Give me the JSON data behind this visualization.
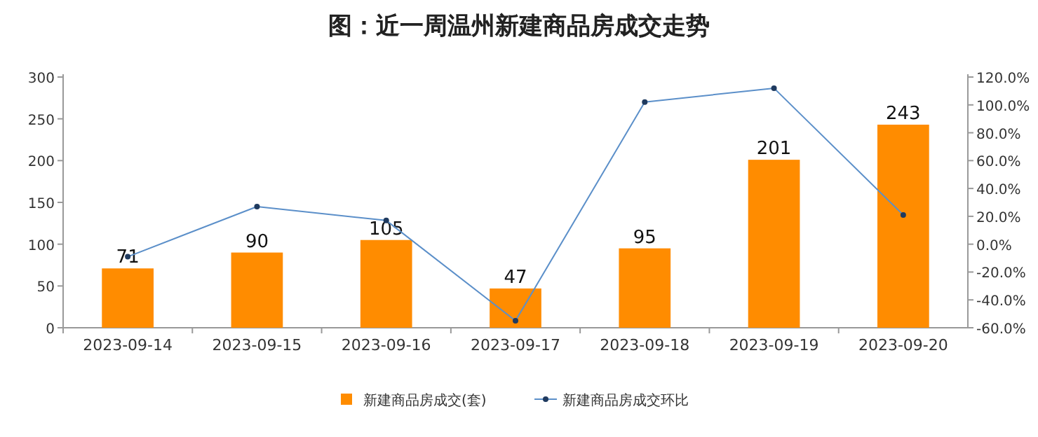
{
  "chart_data": {
    "type": "bar",
    "title": "图：近一周温州新建商品房成交走势",
    "categories": [
      "2023-09-14",
      "2023-09-15",
      "2023-09-16",
      "2023-09-17",
      "2023-09-18",
      "2023-09-19",
      "2023-09-20"
    ],
    "series": [
      {
        "name": "新建商品房成交(套)",
        "color": "#ff8c00",
        "values": [
          71,
          90,
          105,
          47,
          95,
          201,
          243
        ],
        "value_labels": [
          "71",
          "90",
          "105",
          "47",
          "95",
          "201",
          "243"
        ]
      },
      {
        "name": "新建商品房成交环比",
        "type": "line",
        "axis": "y2",
        "color": "#5b8fc9",
        "marker": "circle",
        "values": [
          -9,
          27,
          17,
          -55,
          102,
          112,
          21
        ]
      }
    ],
    "ylim": [
      0,
      300
    ],
    "yticks": [
      0,
      50,
      100,
      150,
      200,
      250,
      300
    ],
    "y2lim": [
      -60,
      120
    ],
    "y2ticks": [
      {
        "value": -60,
        "label": "-60.0%"
      },
      {
        "value": -40,
        "label": "-40.0%"
      },
      {
        "value": -20,
        "label": "-20.0%"
      },
      {
        "value": 0,
        "label": "0.0%"
      },
      {
        "value": 20,
        "label": "20.0%"
      },
      {
        "value": 40,
        "label": "40.0%"
      },
      {
        "value": 60,
        "label": "60.0%"
      },
      {
        "value": 80,
        "label": "80.0%"
      },
      {
        "value": 100,
        "label": "100.0%"
      },
      {
        "value": 120,
        "label": "120.0%"
      }
    ],
    "legend": "bottom",
    "grid": false
  }
}
